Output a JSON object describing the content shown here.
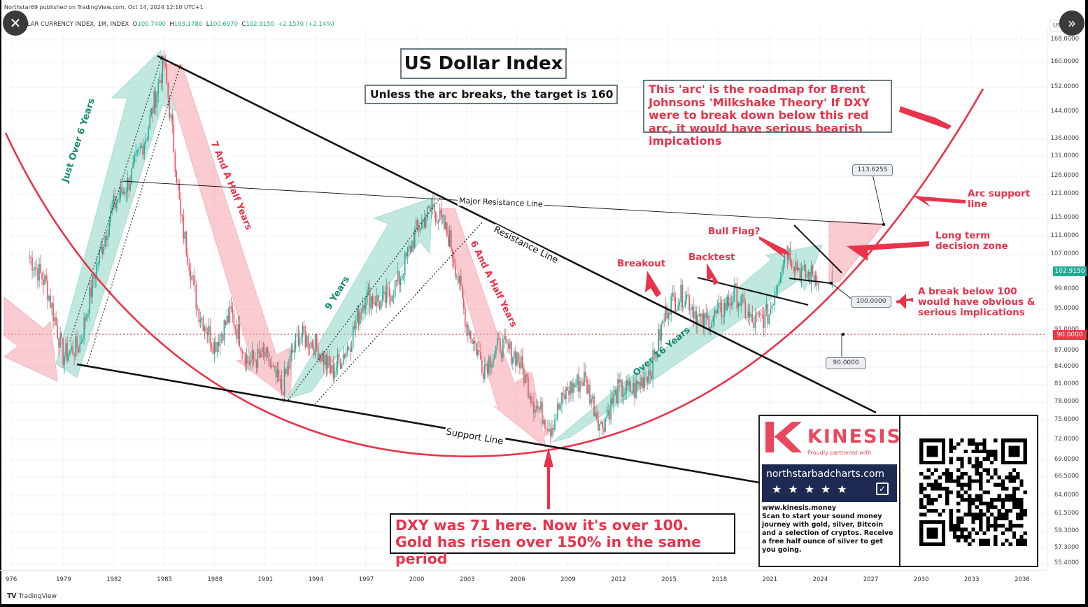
{
  "header": {
    "published": "Northstar69 published on TradingView.com, Oct 14, 2024 12:10 UTC+1",
    "symbol": "LLAR CURRENCY INDEX, 1M, INDEX",
    "o_label": "O",
    "o": "100.7400",
    "h_label": "H",
    "h": "103.1780",
    "l_label": "L",
    "l": "100.6970",
    "c_label": "C",
    "c": "102.9150",
    "change": "+2.1570 (+2.14%)"
  },
  "controls": {
    "close_icon": "✕",
    "next_icon": "»",
    "currency_tag": "US"
  },
  "footer": {
    "brand": "TradingView",
    "logo_glyph": "TV"
  },
  "price_axis": {
    "ticks": [
      "168.0000",
      "160.0000",
      "152.0000",
      "144.0000",
      "136.0000",
      "131.0000",
      "126.0000",
      "121.0000",
      "115.0000",
      "111.0000",
      "107.0000",
      "99.0000",
      "95.0000",
      "91.0000",
      "87.0000",
      "84.0000",
      "81.0000",
      "78.0000",
      "75.0000",
      "72.0000",
      "69.0000",
      "66.5000",
      "64.0000",
      "61.5000",
      "59.3000",
      "57.3000",
      "55.4000"
    ],
    "last_price": "102.9150",
    "last_price_color": "#22ab94",
    "line_price": "90.0000",
    "line_price_color": "#f23645"
  },
  "time_axis": {
    "ticks": [
      "976",
      "1979",
      "1982",
      "1985",
      "1988",
      "1991",
      "1994",
      "1997",
      "2000",
      "2003",
      "2006",
      "2009",
      "2012",
      "2015",
      "2018",
      "2021",
      "2024",
      "2027",
      "2030",
      "2033",
      "2036"
    ]
  },
  "annotations": {
    "title": "US Dollar Index",
    "subtitle": "Unless the arc breaks, the target is 160",
    "arc_note": "This 'arc' is the roadmap for Brent Johnsons 'Milkshake Theory' If DXY were to break down below this red arc, it would have serious bearish impications",
    "dxy_note": "DXY was 71 here. Now it's over 100. Gold has risen over 150% in the same period",
    "just_over_6": "Just Over 6 Years",
    "seven_half": "7 And A Half Years",
    "nine_years": "9 Years",
    "six_half": "6 And A Half Years",
    "over_16": "Over 16 Years",
    "major_resistance": "Major Resistance Line",
    "resistance": "Resistance Line",
    "support": "Support Line",
    "breakout": "Breakout",
    "backtest": "Backtest",
    "bull_flag": "Bull Flag?",
    "arc_support_1": "Arc support",
    "arc_support_2": "line",
    "decision_1": "Long term",
    "decision_2": "decision zone",
    "break_1": "A break below 100",
    "break_2": "would have obvious &",
    "break_3": "serious implications",
    "tag_113": "113.6255",
    "tag_100": "100.0000",
    "tag_90": "90.0000"
  },
  "sponsor": {
    "brand": "KINESIS",
    "partner": "Proudly partnered with",
    "site": "northstarbadcharts.com",
    "stars": "★★★★★",
    "url": "www.kinesis.money",
    "pitch": "Scan to start your sound money journey with gold, silver, Bitcoin and a selection of cryptos. Receive a free half ounce of silver to get you going."
  },
  "chart_data": {
    "type": "candlestick",
    "title": "US Dollar Index",
    "subtitle": "Unless the arc breaks, the target is 160",
    "symbol": "U.S. DOLLAR CURRENCY INDEX, 1M, INDEX",
    "xlabel": "",
    "ylabel": "",
    "ohlc_last": {
      "open": 100.74,
      "high": 103.178,
      "low": 100.697,
      "close": 102.915,
      "change": 2.157,
      "change_pct": 2.14
    },
    "y_scale": "log",
    "ylim": [
      55.4,
      168
    ],
    "xlim": [
      "1976",
      "2038"
    ],
    "grid": true,
    "x": [
      1977,
      1978,
      1979,
      1980,
      1981,
      1982,
      1983,
      1984,
      1985,
      1986,
      1987,
      1988,
      1989,
      1990,
      1991,
      1992,
      1993,
      1994,
      1995,
      1996,
      1997,
      1998,
      1999,
      2000,
      2001,
      2002,
      2003,
      2004,
      2005,
      2006,
      2007,
      2008,
      2009,
      2010,
      2011,
      2012,
      2013,
      2014,
      2015,
      2016,
      2017,
      2018,
      2019,
      2020,
      2021,
      2022,
      2023,
      2024
    ],
    "approx_close": [
      106,
      100,
      86,
      88,
      104,
      118,
      125,
      138,
      160,
      115,
      95,
      88,
      94,
      85,
      86,
      80,
      90,
      88,
      83,
      88,
      98,
      96,
      101,
      112,
      118,
      110,
      92,
      84,
      88,
      86,
      78,
      74,
      80,
      82,
      74,
      80,
      80,
      84,
      96,
      98,
      92,
      94,
      98,
      92,
      94,
      108,
      102,
      102
    ],
    "trend_lines": [
      {
        "name": "Resistance Line",
        "from": [
          1985.2,
          163
        ],
        "to": [
          2025.5,
          74
        ]
      },
      {
        "name": "Support Line",
        "from": [
          1980.7,
          84.5
        ],
        "to": [
          2024.5,
          67
        ]
      },
      {
        "name": "Major Resistance Line",
        "from": [
          1982.8,
          123
        ],
        "to": [
          2027.8,
          113.6
        ]
      }
    ],
    "arc": {
      "name": "Arc support line",
      "min_year": 2007.5,
      "min_value": 70,
      "crosses_100": 2024.7,
      "target": 160
    },
    "levels": [
      {
        "value": 113.6255
      },
      {
        "value": 100.0
      },
      {
        "value": 90.0,
        "style": "dotted-red"
      }
    ],
    "cycles": [
      {
        "label": "Just Over 6 Years",
        "from": 1979,
        "to": 1985.2,
        "direction": "up"
      },
      {
        "label": "7 And A Half Years",
        "from": 1985.2,
        "to": 1992.7,
        "direction": "down"
      },
      {
        "label": "9 Years",
        "from": 1992.7,
        "to": 2001.8,
        "direction": "up"
      },
      {
        "label": "6 And A Half Years",
        "from": 2001.8,
        "to": 2008.3,
        "direction": "down"
      },
      {
        "label": "Over 16 Years",
        "from": 2008.3,
        "to": 2024.7,
        "direction": "up"
      }
    ]
  }
}
